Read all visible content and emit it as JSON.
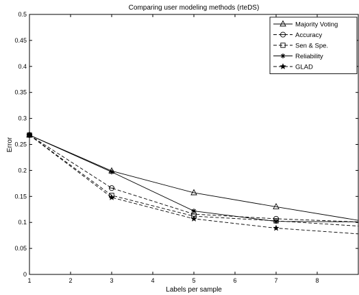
{
  "chart_data": {
    "type": "line",
    "title": "Comparing user modeling methods (rteDS)",
    "xlabel": "Labels per sample",
    "ylabel": "Error",
    "xlim": [
      1,
      9
    ],
    "ylim": [
      0,
      0.5
    ],
    "xticks": [
      1,
      2,
      3,
      4,
      5,
      6,
      7,
      8
    ],
    "yticks": [
      0,
      0.05,
      0.1,
      0.15,
      0.2,
      0.25,
      0.3,
      0.35,
      0.4,
      0.45,
      0.5
    ],
    "xtick_labels": [
      "1",
      "2",
      "3",
      "4",
      "5",
      "6",
      "7",
      "8"
    ],
    "ytick_labels": [
      "0",
      "0.05",
      "0.1",
      "0.15",
      "0.2",
      "0.25",
      "0.3",
      "0.35",
      "0.4",
      "0.45",
      "0.5"
    ],
    "grid": false,
    "legend_position": "top-right",
    "series": [
      {
        "name": "Majority Voting",
        "marker": "triangle",
        "line": "solid",
        "color": "#000000",
        "x": [
          1,
          3,
          5,
          7,
          9
        ],
        "y": [
          0.268,
          0.199,
          0.157,
          0.13,
          0.104
        ]
      },
      {
        "name": "Accuracy",
        "marker": "circle",
        "line": "dashed",
        "color": "#000000",
        "x": [
          1,
          3,
          5,
          7,
          9
        ],
        "y": [
          0.268,
          0.166,
          0.116,
          0.107,
          0.101
        ]
      },
      {
        "name": "Sen & Spe.",
        "marker": "square",
        "line": "dashed",
        "color": "#000000",
        "x": [
          1,
          3,
          5,
          7,
          9
        ],
        "y": [
          0.268,
          0.152,
          0.112,
          0.103,
          0.093
        ]
      },
      {
        "name": "Reliability",
        "marker": "asterisk",
        "line": "solid",
        "color": "#000000",
        "x": [
          1,
          3,
          5,
          7,
          9
        ],
        "y": [
          0.268,
          0.197,
          0.122,
          0.102,
          0.101
        ]
      },
      {
        "name": "GLAD",
        "marker": "star",
        "line": "dashed",
        "color": "#000000",
        "x": [
          1,
          3,
          5,
          7,
          9
        ],
        "y": [
          0.268,
          0.148,
          0.107,
          0.089,
          0.078
        ]
      }
    ]
  }
}
